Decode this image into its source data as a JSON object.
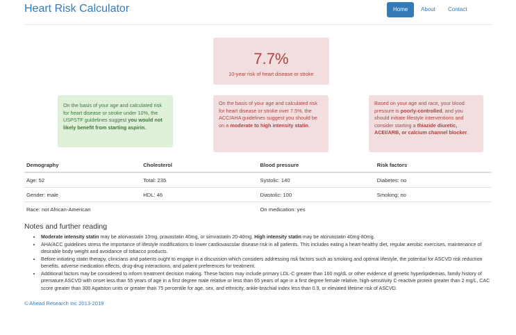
{
  "header": {
    "title": "Heart Risk Calculator",
    "nav": [
      "Home",
      "About",
      "Contact"
    ]
  },
  "risk": {
    "value": "7.7%",
    "label": "10-year risk of heart disease or stroke"
  },
  "recommendations": [
    [
      "On the basis of your age and calculated risk for heart disease or stroke under 10%, the USPSTF guidelines suggest ",
      "you would not likely benefit from starting aspirin."
    ],
    [
      "On the basis of your age and calculated risk for heart disease or stroke over 7.5%, the ACC/AHA guidelines suggest you should be on a ",
      "moderate to high intensity statin",
      "."
    ],
    [
      "Based on your age and race, your blood pressure is ",
      "poorly-controlled",
      ", and you should initiate lifestyle interventions and consider starting a ",
      "thiazide diuretic, ACEI/ARB, or calcium channel blocker",
      "."
    ]
  ],
  "table": {
    "headers": [
      "Demography",
      "Cholesterol",
      "Blood pressure",
      "Risk factors"
    ],
    "rows": [
      [
        "Age: 52",
        "Total: 235",
        "Systolic: 140",
        "Diabetes: no"
      ],
      [
        "Gender: male",
        "HDL: 46",
        "Diastolic: 100",
        "Smoking: no"
      ],
      [
        "Race: not African-American",
        null,
        "On medication: yes",
        null
      ]
    ]
  },
  "notes": {
    "heading": "Notes and further reading",
    "items": [
      [
        "Moderate intensity statin",
        " may be atorvastatin 10mg, pravastatin 40mg, or simvastatin 20-40mg. ",
        "High intensity statin",
        " may be atorvastatin 40mg-80mg."
      ],
      [
        "AHA/ACC guidelines stress the importance of lifestyle modifications to lower cardiovascular disease risk in all patients. This includes eating a heart-healthy diet, regular aerobic exercises, maintenance of desirable body weight and avoidance of tobacco products."
      ],
      [
        "Before initiating statin therapy, clinicians and patients ought to engage in a discussion which considers addressing risk factors such as smoking and optimal lifestyle, the potential for ASCVD risk reduction benefits, adverse medication effects, drug-drug interactions, and patient preferences for treatment."
      ],
      [
        "Additional factors may be considered to inform treatment decision making. These factors may include primary LDL-C greater than 160 mg/dL or other evidence of genetic hyperlipidemias, family history of premature ASCVD with onset less than 55 years of age in a first degree male relative or less than 65 years of age in a first degree female relative, high-sensitivity C-reactive protein greater than 2 mg/L, CAC score greater than 300 Agatston units or greater than 75 percentile for age, sex, and ethnicity, ankle-brachial index less than 0.9, or elevated lifetime risk of ASCVD."
      ]
    ]
  },
  "footer": "© Ahead Research Inc 2013-2019"
}
